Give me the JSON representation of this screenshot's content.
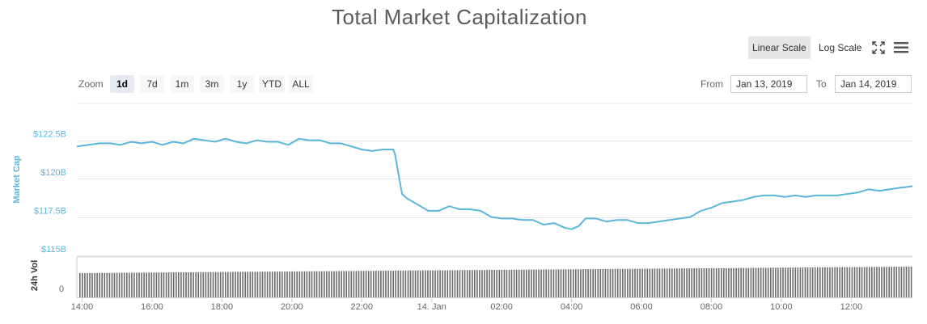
{
  "header": {
    "title": "Total Market Capitalization",
    "linear_scale_label": "Linear Scale",
    "log_scale_label": "Log Scale",
    "active_scale": "linear"
  },
  "zoom": {
    "label": "Zoom",
    "buttons": [
      "1d",
      "7d",
      "1m",
      "3m",
      "1y",
      "YTD",
      "ALL"
    ],
    "active": "1d"
  },
  "range": {
    "from_label": "From",
    "from_value": "Jan 13, 2019",
    "to_label": "To",
    "to_value": "Jan 14, 2019"
  },
  "colors": {
    "line": "#5bb6dc",
    "axis_label": "#5bb6dc",
    "volume_bar": "#6b6b6b",
    "grid": "#e6e6e6",
    "zoom_active": "#e6ebf5",
    "scale_active": "#e6e6e6"
  },
  "chart_data": {
    "type": "line",
    "title": "Total Market Capitalization",
    "ylabel": "Market Cap",
    "y_ticks": [
      "$122.5B",
      "$120B",
      "$117.5B",
      "$115B"
    ],
    "y_tick_values": [
      122.5,
      120,
      117.5,
      115
    ],
    "ylim": [
      115,
      124.9
    ],
    "x_ticks": [
      "14:00",
      "16:00",
      "18:00",
      "20:00",
      "22:00",
      "14. Jan",
      "02:00",
      "04:00",
      "06:00",
      "08:00",
      "10:00",
      "12:00"
    ],
    "x_tick_hours": [
      14,
      16,
      18,
      20,
      22,
      24,
      26,
      28,
      30,
      32,
      34,
      36
    ],
    "xlim_hours": [
      13.85,
      37.75
    ],
    "grid": true,
    "series": [
      {
        "x": [
          13.85,
          14.2,
          14.5,
          14.8,
          15.1,
          15.4,
          15.7,
          16.0,
          16.3,
          16.6,
          16.9,
          17.2,
          17.5,
          17.8,
          18.1,
          18.4,
          18.7,
          19.0,
          19.3,
          19.6,
          19.9,
          20.2,
          20.5,
          20.8,
          21.1,
          21.4,
          21.7,
          22.0,
          22.3,
          22.6,
          22.9,
          22.95,
          23.05,
          23.15,
          23.3,
          23.6,
          23.9,
          24.2,
          24.5,
          24.8,
          25.1,
          25.4,
          25.7,
          26.0,
          26.3,
          26.6,
          26.9,
          27.2,
          27.5,
          27.8,
          28.0,
          28.2,
          28.4,
          28.7,
          29.0,
          29.3,
          29.6,
          29.9,
          30.2,
          30.5,
          30.8,
          31.1,
          31.4,
          31.7,
          32.0,
          32.3,
          32.6,
          32.9,
          33.2,
          33.5,
          33.8,
          34.1,
          34.4,
          34.7,
          35.0,
          35.3,
          35.6,
          35.9,
          36.2,
          36.5,
          36.8,
          37.1,
          37.4,
          37.75
        ],
        "values": [
          122.1,
          122.2,
          122.3,
          122.3,
          122.2,
          122.4,
          122.3,
          122.4,
          122.2,
          122.4,
          122.3,
          122.6,
          122.5,
          122.4,
          122.6,
          122.4,
          122.3,
          122.5,
          122.4,
          122.4,
          122.2,
          122.6,
          122.5,
          122.5,
          122.3,
          122.3,
          122.1,
          121.9,
          121.8,
          121.9,
          121.9,
          121.6,
          120.3,
          119.0,
          118.7,
          118.3,
          117.9,
          117.9,
          118.2,
          118.0,
          118.0,
          117.9,
          117.5,
          117.4,
          117.4,
          117.3,
          117.3,
          117.0,
          117.1,
          116.8,
          116.7,
          116.9,
          117.4,
          117.4,
          117.2,
          117.3,
          117.3,
          117.1,
          117.1,
          117.2,
          117.3,
          117.4,
          117.5,
          117.9,
          118.1,
          118.4,
          118.5,
          118.6,
          118.8,
          118.9,
          118.9,
          118.8,
          118.9,
          118.8,
          118.9,
          118.9,
          118.9,
          119.0,
          119.1,
          119.3,
          119.2,
          119.3,
          119.4,
          119.5
        ]
      }
    ],
    "volume": {
      "label": "24h Vol",
      "y_tick": "0"
    }
  }
}
